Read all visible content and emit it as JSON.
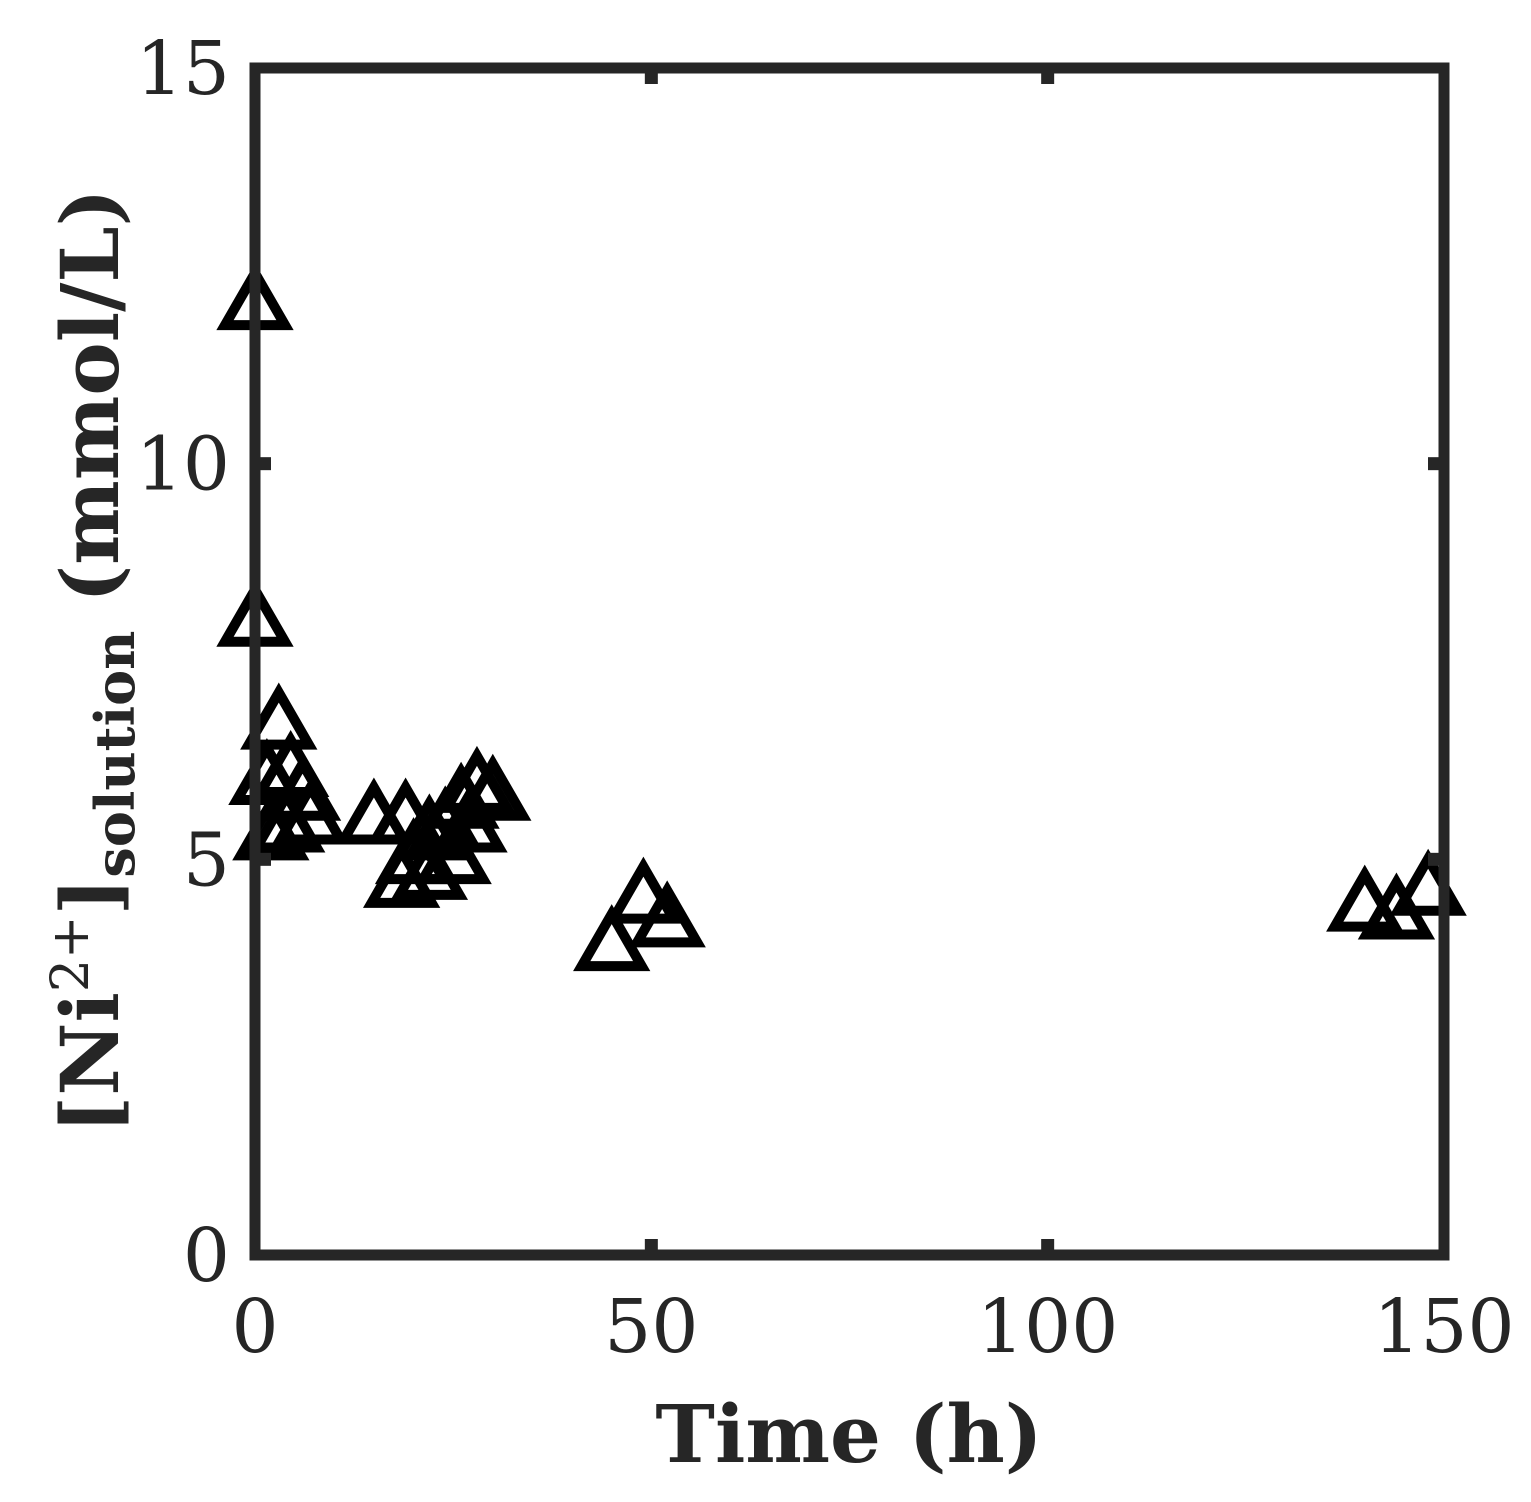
{
  "chart_data": {
    "type": "scatter",
    "xlabel": "Time (h)",
    "ylabel": {
      "open": "[Ni",
      "sup": "2+",
      "close": "]",
      "sub": "solution",
      "unit": " (mmol/L)"
    },
    "xlim": [
      0,
      150
    ],
    "ylim": [
      0,
      15
    ],
    "xticks": [
      0,
      50,
      100,
      150
    ],
    "yticks": [
      0,
      5,
      10,
      15
    ],
    "grid": false,
    "marker": "triangle-open",
    "colors": {
      "axis": "#262626",
      "marker": "#000000"
    },
    "points": [
      {
        "x": 0,
        "y": 12.0
      },
      {
        "x": 0,
        "y": 8.0
      },
      {
        "x": 3,
        "y": 6.7
      },
      {
        "x": 1.5,
        "y": 6.0
      },
      {
        "x": 4.5,
        "y": 6.1
      },
      {
        "x": 6,
        "y": 5.8
      },
      {
        "x": 2,
        "y": 5.3
      },
      {
        "x": 4,
        "y": 5.4
      },
      {
        "x": 7,
        "y": 5.5
      },
      {
        "x": 15,
        "y": 5.5
      },
      {
        "x": 19,
        "y": 5.5
      },
      {
        "x": 18.5,
        "y": 4.7
      },
      {
        "x": 20,
        "y": 5.0
      },
      {
        "x": 22,
        "y": 4.8
      },
      {
        "x": 22,
        "y": 5.3
      },
      {
        "x": 24,
        "y": 5.4
      },
      {
        "x": 25,
        "y": 5.0
      },
      {
        "x": 26,
        "y": 5.7
      },
      {
        "x": 27,
        "y": 5.4
      },
      {
        "x": 28,
        "y": 5.9
      },
      {
        "x": 30,
        "y": 5.8
      },
      {
        "x": 45,
        "y": 3.9
      },
      {
        "x": 49,
        "y": 4.5
      },
      {
        "x": 52,
        "y": 4.2
      },
      {
        "x": 140,
        "y": 4.4
      },
      {
        "x": 144,
        "y": 4.3
      },
      {
        "x": 148,
        "y": 4.6
      }
    ]
  }
}
